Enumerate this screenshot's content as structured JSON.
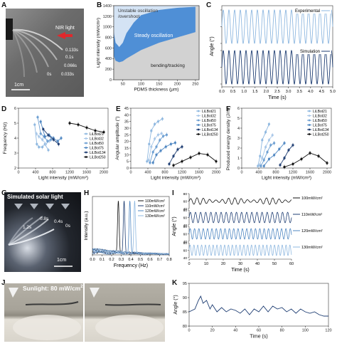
{
  "labels": {
    "A": "A",
    "B": "B",
    "C": "C",
    "D": "D",
    "E": "E",
    "F": "F",
    "G": "G",
    "H": "H",
    "I": "I",
    "J": "J",
    "K": "K"
  },
  "panelA": {
    "nir_label": "NIR light",
    "times": [
      "0.133s",
      "0.1s",
      "0.066s",
      "0.033s",
      "0s"
    ],
    "scale": "1cm"
  },
  "panelG": {
    "title": "Simulated solar light",
    "times": [
      "1.2s",
      "0.8s",
      "0.4s",
      "0s"
    ],
    "scale": "1cm"
  },
  "panelJ": {
    "title": "Sunlight: 80 mW/cm",
    "title_sup": "2"
  },
  "colors": {
    "lightblue": "#8fb8e0",
    "midblue": "#4f87c2",
    "darkblue": "#1f3e73",
    "black": "#111111",
    "phase_fill": "#d4e3f4",
    "osc_fill": "#4f8fd6",
    "bend_fill": "#d2d2d2"
  },
  "chart_data": [
    {
      "id": "B",
      "type": "area",
      "xlabel": "PDMS thickness (μm)",
      "ylabel": "Light intensity (mW/cm²)",
      "xlim": [
        25,
        260
      ],
      "ylim": [
        0,
        1400
      ],
      "xticks": [
        50,
        100,
        150,
        200,
        250
      ],
      "yticks": [
        0,
        200,
        400,
        600,
        800,
        1000,
        1200,
        1400
      ],
      "regions": [
        {
          "name": "Unstable oscillation /overshoot",
          "label_line1": "Unstable oscillation",
          "label_line2": "/overshoot"
        },
        {
          "name": "Steady oscillation"
        },
        {
          "name": "bending/tracking"
        }
      ],
      "upper_boundary": {
        "x": [
          25,
          30,
          40,
          50,
          60,
          70,
          80,
          100,
          150,
          200,
          250
        ],
        "y": [
          900,
          700,
          620,
          700,
          880,
          980,
          1080,
          1220,
          1320,
          1360,
          1380
        ]
      },
      "lower_boundary": {
        "x": [
          25,
          30,
          40,
          50,
          60,
          80,
          100,
          150,
          200,
          250
        ],
        "y": [
          450,
          360,
          330,
          350,
          400,
          480,
          560,
          700,
          800,
          900
        ]
      }
    },
    {
      "id": "C",
      "type": "line",
      "xlabel": "Time (s)",
      "ylabel": "Angle (°)",
      "xlim": [
        0,
        5
      ],
      "xticks": [
        0,
        0.5,
        1.0,
        1.5,
        2.0,
        2.5,
        3.0,
        3.5,
        4.0,
        4.5,
        5.0
      ],
      "xtick_labels": [
        "0.0",
        "0.5",
        "1.0",
        "1.5",
        "2.0",
        "2.5",
        "3.0",
        "3.5",
        "4.0",
        "4.5",
        "5.0"
      ],
      "series": [
        {
          "name": "Experimental",
          "frequency_hz": 3.9,
          "amplitude": 20,
          "center": 30
        },
        {
          "name": "Simulation",
          "frequency_hz": 3.9,
          "amplitude": 20,
          "center": 30
        }
      ]
    },
    {
      "id": "D",
      "type": "line",
      "xlabel": "Light intensity (mW/cm²)",
      "ylabel": "Frequency (Hz)",
      "xlim": [
        0,
        2100
      ],
      "ylim": [
        2,
        6
      ],
      "xticks": [
        0,
        400,
        800,
        1200,
        1600,
        2000
      ],
      "yticks": [
        2,
        3,
        4,
        5,
        6
      ],
      "series": [
        {
          "name": "LiLBot21",
          "x": [
            380,
            430,
            480,
            560,
            620,
            700
          ],
          "y": [
            4.9,
            3.6,
            3.4,
            3.4,
            3.6,
            3.2
          ]
        },
        {
          "name": "LiLBot32",
          "x": [
            420,
            480,
            560,
            640,
            720
          ],
          "y": [
            4.3,
            4.1,
            3.9,
            3.6,
            3.8
          ]
        },
        {
          "name": "LiLBot50",
          "x": [
            450,
            520,
            600,
            680,
            760
          ],
          "y": [
            5.4,
            4.3,
            4.1,
            3.8,
            3.9
          ]
        },
        {
          "name": "LiLBot75",
          "x": [
            520,
            620,
            720,
            820,
            920,
            1000
          ],
          "y": [
            5.1,
            4.1,
            4.2,
            4.0,
            3.8,
            4.0
          ]
        },
        {
          "name": "LiLBot134",
          "x": [
            580,
            700,
            820,
            940
          ],
          "y": [
            4.6,
            4.2,
            3.9,
            3.6
          ]
        },
        {
          "name": "LiLBot250",
          "x": [
            1200,
            1400,
            1600,
            1800,
            2000
          ],
          "y": [
            5.0,
            4.9,
            4.7,
            4.5,
            4.4
          ]
        }
      ]
    },
    {
      "id": "E",
      "type": "line",
      "xlabel": "Light intensity (mW/cm²)",
      "ylabel": "Angular amplitude (°)",
      "xlim": [
        0,
        2100
      ],
      "ylim": [
        0,
        45
      ],
      "xticks": [
        0,
        400,
        800,
        1200,
        1600,
        2000
      ],
      "yticks": [
        0,
        5,
        10,
        15,
        20,
        25,
        30,
        35,
        40,
        45
      ],
      "series": [
        {
          "name": "LiLBot21",
          "x": [
            380,
            430,
            480,
            560,
            640,
            740
          ],
          "y": [
            5,
            18,
            28,
            33,
            35,
            37
          ]
        },
        {
          "name": "LiLBot32",
          "x": [
            420,
            480,
            560,
            640,
            720
          ],
          "y": [
            6,
            16,
            22,
            25,
            26
          ]
        },
        {
          "name": "LiLBot50",
          "x": [
            450,
            520,
            600,
            680,
            760,
            840
          ],
          "y": [
            4,
            12,
            16,
            21,
            24,
            25
          ]
        },
        {
          "name": "LiLBot75",
          "x": [
            520,
            600,
            700,
            820,
            940,
            1040
          ],
          "y": [
            4,
            10,
            13,
            16,
            18,
            19
          ]
        },
        {
          "name": "LiLBot134",
          "x": [
            900,
            1000,
            1100,
            1200
          ],
          "y": [
            3,
            9,
            14,
            16
          ]
        },
        {
          "name": "LiLBot250",
          "x": [
            1000,
            1200,
            1400,
            1600,
            1800,
            2000
          ],
          "y": [
            2,
            5,
            8,
            11,
            10,
            5
          ]
        }
      ]
    },
    {
      "id": "F",
      "type": "line",
      "xlabel": "Light intensity (mW/cm²)",
      "ylabel": "Produced energy density (J/m³)",
      "xlim": [
        0,
        2100
      ],
      "ylim": [
        0,
        6
      ],
      "xticks": [
        0,
        400,
        800,
        1200,
        1600,
        2000
      ],
      "yticks": [
        0,
        1,
        2,
        3,
        4,
        5,
        6
      ],
      "series": [
        {
          "name": "LiLBot21",
          "x": [
            380,
            430,
            480,
            560,
            640
          ],
          "y": [
            0.2,
            1.2,
            2.8,
            3.6,
            4.4
          ]
        },
        {
          "name": "LiLBot32",
          "x": [
            420,
            480,
            560,
            640,
            720
          ],
          "y": [
            0.3,
            1.0,
            2.1,
            2.8,
            3.3
          ]
        },
        {
          "name": "LiLBot50",
          "x": [
            450,
            520,
            600,
            680,
            760
          ],
          "y": [
            0.2,
            0.8,
            1.6,
            2.3,
            2.5
          ]
        },
        {
          "name": "LiLBot75",
          "x": [
            520,
            640,
            760,
            880,
            1000
          ],
          "y": [
            0.2,
            0.9,
            1.3,
            1.9,
            2.5
          ]
        },
        {
          "name": "LiLBot134",
          "x": [
            900,
            1000,
            1100,
            1200
          ],
          "y": [
            0.3,
            1.0,
            1.8,
            2.3
          ]
        },
        {
          "name": "LiLBot250",
          "x": [
            1000,
            1200,
            1400,
            1600,
            1800,
            2000
          ],
          "y": [
            0.1,
            0.4,
            0.9,
            1.5,
            1.2,
            0.5
          ]
        }
      ]
    },
    {
      "id": "H",
      "type": "line",
      "xlabel": "Frequency (Hz)",
      "ylabel": "Intensity (a.u.)",
      "xlim": [
        0,
        0.8
      ],
      "xticks": [
        0,
        0.1,
        0.2,
        0.3,
        0.4,
        0.5,
        0.6,
        0.7,
        0.8
      ],
      "xtick_labels": [
        "0.0",
        "0.1",
        "0.2",
        "0.3",
        "0.4",
        "0.5",
        "0.6",
        "0.7",
        "0.8"
      ],
      "series": [
        {
          "name": "100mW/cm²",
          "peak_hz": 0.27
        },
        {
          "name": "110mW/cm²",
          "peak_hz": 0.33
        },
        {
          "name": "120mW/cm²",
          "peak_hz": 0.39
        },
        {
          "name": "130mW/cm²",
          "peak_hz": 0.44
        }
      ]
    },
    {
      "id": "I",
      "type": "line",
      "xlabel": "Time (s)",
      "ylabel": "Angle (°)",
      "xlim": [
        0,
        60
      ],
      "xticks": [
        0,
        10,
        20,
        30,
        40,
        50,
        60
      ],
      "row_ylim": [
        40,
        80
      ],
      "row_yticks": [
        40,
        60,
        80
      ],
      "series": [
        {
          "name": "100mW/cm²",
          "period_s": 3.7
        },
        {
          "name": "110mW/cm²",
          "period_s": 3.0
        },
        {
          "name": "120mW/cm²",
          "period_s": 2.55
        },
        {
          "name": "130mW/cm²",
          "period_s": 2.25
        }
      ]
    },
    {
      "id": "K",
      "type": "line",
      "xlabel": "Time (s)",
      "ylabel": "Angle (°)",
      "xlim": [
        0,
        120
      ],
      "ylim": [
        80,
        95
      ],
      "xticks": [
        0,
        20,
        40,
        60,
        80,
        100,
        120
      ],
      "yticks": [
        80,
        85,
        90,
        95
      ],
      "series": [
        {
          "name": "Angle",
          "x": [
            0,
            5,
            8,
            10,
            12,
            15,
            18,
            20,
            24,
            28,
            32,
            36,
            40,
            44,
            48,
            52,
            56,
            60,
            64,
            68,
            72,
            76,
            80,
            84,
            88,
            92,
            96,
            100,
            104,
            108,
            112,
            116,
            120
          ],
          "y": [
            85,
            86,
            89,
            90.5,
            88,
            89,
            86,
            87.5,
            85,
            86.5,
            85,
            86,
            85.5,
            84.5,
            86,
            84,
            86,
            85,
            87,
            85,
            87,
            86,
            86.5,
            85,
            86,
            84.5,
            86,
            85,
            84.5,
            85,
            84,
            83.5,
            83.5
          ]
        }
      ]
    }
  ]
}
